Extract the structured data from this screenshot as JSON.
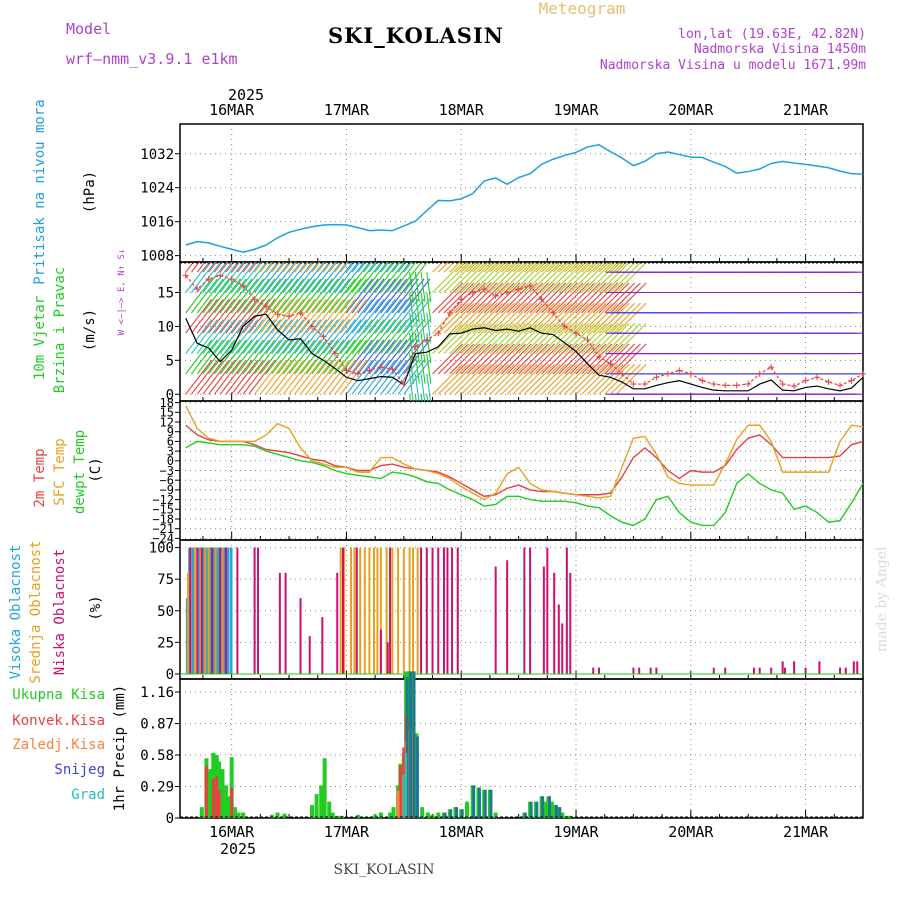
{
  "header": {
    "model_label": "Model",
    "model_name": "wrf—nmm_v3.9.1 e1km",
    "title": "SKI_KOLASIN",
    "subtitle": "Meteogram",
    "coords": "lon,lat (19.63E, 42.82N)",
    "elev1": "Nadmorska Visina 1450m",
    "elev2": "Nadmorska Visina u modelu 1671.99m",
    "footer": "SKI_KOLASIN",
    "credit": "made by Angel"
  },
  "colors": {
    "pressure": "#1ea0e0",
    "wind_label": "#22cc22",
    "temp2m": "#e84040",
    "sfc": "#e8a020",
    "dewpt": "#22cc22",
    "cloud_high": "#20a8d8",
    "cloud_mid": "#e8a020",
    "cloud_low": "#cc1070",
    "model": "#b040d0",
    "precip_total": "#22cc22",
    "precip_conv": "#e84040",
    "precip_strat": "#ff8040",
    "snow": "#4040e0",
    "graupel": "#20c0c0"
  },
  "chart_data": [
    {
      "type": "line",
      "panel": "pressure",
      "ylabel": [
        "Pritisak na nivou mora",
        "(hPa)"
      ],
      "yticks": [
        1008,
        1016,
        1024,
        1032
      ],
      "ylim": [
        1006.5,
        1039
      ],
      "x_top": [
        "16MAR",
        "17MAR",
        "18MAR",
        "19MAR",
        "20MAR",
        "21MAR"
      ],
      "x_top_year": "2025",
      "x": [
        15.6,
        15.7,
        15.8,
        15.9,
        16.0,
        16.1,
        16.2,
        16.3,
        16.4,
        16.5,
        16.6,
        16.7,
        16.8,
        16.9,
        17.0,
        17.1,
        17.2,
        17.3,
        17.4,
        17.5,
        17.6,
        17.7,
        17.8,
        17.9,
        18.0,
        18.1,
        18.2,
        18.3,
        18.4,
        18.5,
        18.6,
        18.7,
        18.8,
        18.9,
        19.0,
        19.1,
        19.2,
        19.3,
        19.4,
        19.5,
        19.6,
        19.7,
        19.8,
        19.9,
        20.0,
        20.1,
        20.2,
        20.3,
        20.4,
        20.5,
        20.6,
        20.7,
        20.8,
        20.9,
        21.0,
        21.1,
        21.2,
        21.3,
        21.4,
        21.5
      ],
      "values": [
        1010.5,
        1011.3,
        1011.0,
        1010.2,
        1009.5,
        1008.8,
        1009.5,
        1010.5,
        1012.2,
        1013.5,
        1014.2,
        1014.8,
        1015.2,
        1015.3,
        1015.2,
        1014.6,
        1013.9,
        1014.0,
        1013.9,
        1015.0,
        1016.1,
        1018.6,
        1021.0,
        1020.9,
        1021.4,
        1022.6,
        1025.6,
        1026.3,
        1024.8,
        1026.4,
        1027.3,
        1029.5,
        1030.7,
        1031.6,
        1032.3,
        1033.6,
        1034.1,
        1032.5,
        1031.0,
        1029.2,
        1030.2,
        1032.0,
        1032.4,
        1031.8,
        1031.2,
        1031.1,
        1030.0,
        1029.0,
        1027.4,
        1027.8,
        1028.4,
        1029.7,
        1030.2,
        1029.8,
        1029.5,
        1029.1,
        1028.7,
        1027.9,
        1027.3,
        1027.2
      ]
    },
    {
      "type": "line",
      "panel": "wind",
      "ylabel": [
        "10m Vjetar",
        "Brzina i Pravac",
        "(m/s)"
      ],
      "yticks": [
        0,
        5,
        10,
        15
      ],
      "ylim": [
        -1,
        19.5
      ],
      "dir_legend": "W <—|—> E, N↑ S↓",
      "x": [
        15.6,
        15.7,
        15.8,
        15.9,
        16.0,
        16.1,
        16.2,
        16.3,
        16.4,
        16.5,
        16.6,
        16.7,
        16.8,
        16.9,
        17.0,
        17.1,
        17.2,
        17.3,
        17.4,
        17.5,
        17.6,
        17.7,
        17.8,
        17.9,
        18.0,
        18.1,
        18.2,
        18.3,
        18.4,
        18.5,
        18.6,
        18.7,
        18.8,
        18.9,
        19.0,
        19.1,
        19.2,
        19.3,
        19.4,
        19.5,
        19.6,
        19.7,
        19.8,
        19.9,
        20.0,
        20.1,
        20.2,
        20.3,
        20.4,
        20.5,
        20.6,
        20.7,
        20.8,
        20.9,
        21.0,
        21.1,
        21.2,
        21.3,
        21.4,
        21.5
      ],
      "speed": [
        11.2,
        7.5,
        6.8,
        4.8,
        6.5,
        10.0,
        11.5,
        11.8,
        9.5,
        8.0,
        8.2,
        6.0,
        5.0,
        3.8,
        2.5,
        2.0,
        2.3,
        2.6,
        2.5,
        1.4,
        6.0,
        6.2,
        7.0,
        8.9,
        9.0,
        9.6,
        9.8,
        9.4,
        9.6,
        9.3,
        9.8,
        9.0,
        8.8,
        7.6,
        6.3,
        4.5,
        2.8,
        2.5,
        1.8,
        0.8,
        0.8,
        1.3,
        1.7,
        2.0,
        1.5,
        1.0,
        0.6,
        0.5,
        0.5,
        0.5,
        1.5,
        2.1,
        0.6,
        0.5,
        1.0,
        1.2,
        0.8,
        0.5,
        0.9,
        2.5
      ],
      "gust": [
        17.5,
        15.5,
        17.0,
        17.5,
        17.0,
        16.0,
        14.0,
        13.0,
        11.8,
        11.5,
        12.0,
        10.0,
        8.5,
        6.0,
        3.5,
        3.0,
        3.5,
        4.0,
        3.7,
        1.5,
        7.0,
        8.0,
        9.0,
        12.0,
        14.0,
        15.0,
        15.5,
        14.5,
        15.0,
        15.5,
        16.0,
        14.0,
        12.0,
        10.0,
        9.0,
        8.0,
        5.5,
        4.5,
        3.0,
        1.5,
        1.5,
        2.5,
        3.0,
        3.5,
        3.0,
        2.0,
        1.5,
        1.3,
        1.3,
        1.5,
        3.0,
        4.0,
        1.5,
        1.2,
        2.0,
        2.5,
        1.8,
        1.3,
        2.0,
        3.0
      ]
    },
    {
      "type": "line",
      "panel": "temperature",
      "ylabel": [
        "2m Temp",
        "SFC Temp",
        "dewpt Temp",
        "(C)"
      ],
      "yticks": [
        -24,
        -21,
        -18,
        -15,
        -12,
        -9,
        -6,
        -3,
        0,
        3,
        6,
        9,
        12,
        15,
        18
      ],
      "ylim": [
        -24.5,
        18.5
      ],
      "x": [
        15.6,
        15.7,
        15.8,
        15.9,
        16.0,
        16.1,
        16.2,
        16.3,
        16.4,
        16.5,
        16.6,
        16.7,
        16.8,
        16.9,
        17.0,
        17.1,
        17.2,
        17.3,
        17.4,
        17.5,
        17.6,
        17.7,
        17.8,
        17.9,
        18.0,
        18.1,
        18.2,
        18.3,
        18.4,
        18.5,
        18.6,
        18.7,
        18.8,
        18.9,
        19.0,
        19.1,
        19.2,
        19.3,
        19.4,
        19.5,
        19.6,
        19.7,
        19.8,
        19.9,
        20.0,
        20.1,
        20.2,
        20.3,
        20.4,
        20.5,
        20.6,
        20.7,
        20.8,
        20.9,
        21.0,
        21.1,
        21.2,
        21.3,
        21.4,
        21.5
      ],
      "series": [
        {
          "name": "2m Temp",
          "values": [
            11,
            8,
            6.5,
            6,
            6,
            6,
            5,
            3.5,
            3,
            2.5,
            1.5,
            0.5,
            0,
            -1.5,
            -2,
            -3,
            -3,
            -1.5,
            -1,
            -2,
            -2.5,
            -3,
            -3.5,
            -5,
            -7,
            -9,
            -11,
            -10.5,
            -8.5,
            -7.5,
            -9,
            -9.5,
            -9.5,
            -10,
            -10.5,
            -10.5,
            -10.5,
            -10,
            -5,
            1,
            4,
            1,
            -3,
            -5.5,
            -3,
            -3.5,
            -3.5,
            -1.5,
            3.5,
            7,
            8,
            5,
            1,
            1,
            1,
            1,
            1,
            1.5,
            5,
            6
          ]
        },
        {
          "name": "SFC Temp",
          "values": [
            17,
            10,
            7,
            6,
            6,
            6,
            6,
            8,
            11.5,
            10,
            4,
            0,
            -1,
            -2,
            -2,
            -3.5,
            -3.5,
            1,
            1,
            -1,
            -2.5,
            -3,
            -4,
            -5.5,
            -8,
            -10,
            -12,
            -10,
            -4,
            -2,
            -7,
            -9,
            -9.5,
            -10,
            -10.5,
            -11,
            -11.5,
            -11,
            -2,
            7,
            7.5,
            2,
            -5,
            -7,
            -7.5,
            -7.5,
            -7.5,
            -1,
            6.5,
            11,
            11,
            6,
            -3.5,
            -3.5,
            -3.5,
            -3.5,
            -3.5,
            6,
            11,
            10.5
          ]
        },
        {
          "name": "dewpt Temp",
          "values": [
            4,
            6,
            5.5,
            5,
            5,
            5,
            4.5,
            3,
            2,
            1,
            0,
            -0.5,
            -1.5,
            -3,
            -4,
            -4.5,
            -5,
            -5.5,
            -3.5,
            -4,
            -5,
            -6.5,
            -7,
            -9,
            -10.5,
            -12,
            -14,
            -13.5,
            -11,
            -11,
            -12,
            -12.5,
            -12.5,
            -12.5,
            -13,
            -14,
            -14.5,
            -17,
            -19,
            -20,
            -18,
            -12,
            -11,
            -16,
            -19,
            -20,
            -20,
            -16,
            -7,
            -4,
            -7,
            -9,
            -10,
            -15,
            -14,
            -16,
            -19,
            -18.5,
            -13,
            -7
          ]
        }
      ]
    },
    {
      "type": "bar",
      "panel": "clouds",
      "ylabel": [
        "Visoka Oblacnost",
        "Srednja Oblacnost",
        "Niska Oblacnost",
        "(%)"
      ],
      "yticks": [
        0,
        25,
        50,
        75,
        100
      ],
      "ylim": [
        -4,
        106
      ],
      "series": [
        {
          "name": "Visoka Oblacnost",
          "x": [
            15.61,
            15.63,
            15.66,
            15.71,
            15.75,
            15.78,
            15.81,
            15.84,
            15.87,
            15.89,
            15.91,
            15.93,
            15.96,
            15.99
          ],
          "values": [
            60,
            100,
            100,
            100,
            100,
            100,
            100,
            100,
            100,
            100,
            100,
            100,
            100,
            100
          ]
        },
        {
          "name": "Srednja Oblacnost",
          "x": [
            15.62,
            15.68,
            15.73,
            15.77,
            15.8,
            15.86,
            15.92,
            16.95,
            16.98,
            17.04,
            17.07,
            17.12,
            17.16,
            17.2,
            17.24,
            17.27,
            17.3,
            17.35,
            17.4,
            17.45,
            17.5,
            17.55,
            17.58,
            17.62
          ],
          "values": [
            80,
            100,
            100,
            100,
            100,
            100,
            100,
            100,
            100,
            100,
            100,
            100,
            100,
            100,
            100,
            100,
            100,
            100,
            100,
            100,
            100,
            100,
            100,
            100
          ]
        },
        {
          "name": "Niska Oblacnost",
          "x": [
            15.64,
            15.7,
            15.74,
            15.83,
            15.9,
            15.95,
            16.05,
            16.2,
            16.23,
            16.42,
            16.47,
            16.6,
            16.68,
            16.79,
            16.92,
            16.97,
            17.09,
            17.3,
            17.36,
            17.38,
            17.65,
            17.7,
            17.75,
            17.8,
            17.85,
            17.88,
            17.92,
            17.97,
            18.3,
            18.4,
            18.55,
            18.6,
            18.72,
            18.75,
            18.81,
            18.85,
            18.88,
            18.92,
            18.95,
            19.15,
            19.2,
            19.5,
            19.55,
            19.65,
            19.7,
            20.2,
            20.3,
            20.55,
            20.6,
            20.7,
            20.8,
            20.82,
            20.9,
            21.0,
            21.12,
            21.3,
            21.35,
            21.42,
            21.45
          ],
          "values": [
            100,
            100,
            100,
            100,
            100,
            100,
            100,
            100,
            100,
            80,
            80,
            60,
            30,
            45,
            80,
            100,
            100,
            35,
            25,
            100,
            100,
            100,
            100,
            100,
            100,
            100,
            100,
            100,
            85,
            90,
            100,
            100,
            85,
            100,
            80,
            55,
            40,
            100,
            80,
            5,
            5,
            5,
            5,
            5,
            5,
            5,
            5,
            5,
            5,
            5,
            10,
            5,
            10,
            5,
            10,
            5,
            5,
            10,
            10
          ]
        }
      ]
    },
    {
      "type": "bar",
      "panel": "precipitation",
      "ylabel": "1hr Precip (mm)",
      "yticks": [
        0,
        0.29,
        0.58,
        0.87,
        1.16
      ],
      "ylim": [
        0,
        1.28
      ],
      "x_bottom": [
        "16MAR",
        "17MAR",
        "18MAR",
        "19MAR",
        "20MAR",
        "21MAR"
      ],
      "x_bottom_year": "2025",
      "legend": [
        "Ukupna Kisa",
        "Konvek.Kisa",
        "Zaledj.Kisa",
        "Snijeg",
        "Grad"
      ],
      "series": [
        {
          "name": "Ukupna Kisa",
          "x": [
            15.74,
            15.78,
            15.81,
            15.84,
            15.87,
            15.89,
            15.92,
            15.95,
            15.97,
            16.0,
            16.03,
            16.06,
            16.1,
            16.35,
            16.4,
            16.46,
            16.7,
            16.74,
            16.78,
            16.81,
            16.85,
            16.88,
            16.92,
            16.96,
            17.1,
            17.25,
            17.3,
            17.38,
            17.41,
            17.45,
            17.47,
            17.5,
            17.52,
            17.55,
            17.58,
            17.61,
            17.66,
            17.71,
            17.75,
            17.8,
            17.85,
            17.9,
            17.95,
            18.0,
            18.05,
            18.1,
            18.15,
            18.2,
            18.25,
            18.3,
            18.55,
            18.6,
            18.65,
            18.7,
            18.73,
            18.76,
            18.79,
            18.82,
            18.85,
            18.88,
            18.92,
            18.95
          ],
          "values": [
            0.1,
            0.55,
            0.45,
            0.6,
            0.58,
            0.52,
            0.45,
            0.3,
            0.2,
            0.56,
            0.1,
            0.05,
            0.05,
            0.03,
            0.05,
            0.04,
            0.12,
            0.22,
            0.3,
            0.55,
            0.15,
            0.05,
            0.02,
            0.02,
            0.03,
            0.03,
            0.05,
            0.05,
            0.1,
            0.3,
            0.5,
            0.6,
            1.35,
            1.35,
            1.35,
            0.78,
            0.1,
            0.05,
            0.03,
            0.05,
            0.05,
            0.08,
            0.1,
            0.08,
            0.15,
            0.3,
            0.28,
            0.26,
            0.26,
            0.05,
            0.05,
            0.15,
            0.15,
            0.2,
            0.15,
            0.2,
            0.15,
            0.12,
            0.1,
            0.05,
            0.02,
            0.02
          ]
        },
        {
          "name": "Konvek.Kisa",
          "x": [
            15.78,
            15.84,
            15.87,
            15.89,
            16.0,
            17.47,
            17.5,
            17.52,
            17.55
          ],
          "values": [
            0.48,
            0.36,
            0.38,
            0.25,
            0.28,
            0.48,
            0.65,
            0.95,
            0.9
          ]
        },
        {
          "name": "Zaledj.Kisa",
          "x": [
            17.45,
            17.5,
            17.52,
            17.55,
            17.58
          ],
          "values": [
            0.25,
            0.4,
            0.7,
            0.8,
            0.8
          ]
        },
        {
          "name": "Snijeg",
          "x": [
            17.52,
            17.55,
            17.58,
            17.61,
            17.85,
            17.9,
            17.95,
            18.0,
            18.1,
            18.15,
            18.2,
            18.25,
            18.55,
            18.6,
            18.65,
            18.7,
            18.76,
            18.82,
            18.85
          ],
          "values": [
            1.3,
            1.35,
            1.35,
            0.75,
            0.05,
            0.08,
            0.1,
            0.08,
            0.3,
            0.28,
            0.26,
            0.26,
            0.05,
            0.15,
            0.15,
            0.2,
            0.2,
            0.12,
            0.1
          ]
        },
        {
          "name": "Grad",
          "x": [
            17.5,
            17.52
          ],
          "values": [
            0.4,
            0.6
          ]
        }
      ]
    }
  ]
}
